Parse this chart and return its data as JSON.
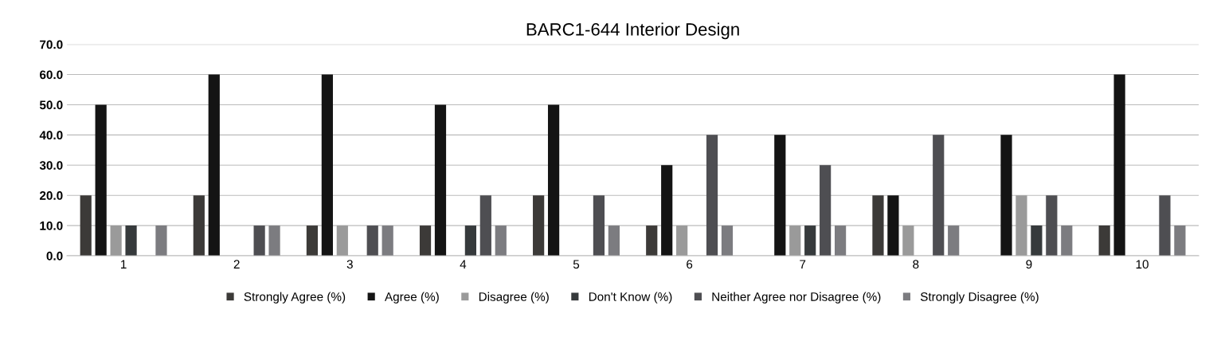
{
  "chart_data": {
    "type": "bar",
    "title": "BARC1-644 Interior Design",
    "categories": [
      "1",
      "2",
      "3",
      "4",
      "5",
      "6",
      "7",
      "8",
      "9",
      "10"
    ],
    "series": [
      {
        "name": "Strongly Agree (%)",
        "color": "#3c3a38",
        "values": [
          20,
          20,
          10,
          10,
          20,
          10,
          0,
          20,
          0,
          10
        ]
      },
      {
        "name": "Agree (%)",
        "color": "#141414",
        "values": [
          50,
          60,
          60,
          50,
          50,
          30,
          40,
          20,
          40,
          60
        ]
      },
      {
        "name": "Disagree (%)",
        "color": "#9a9a9a",
        "values": [
          10,
          0,
          10,
          0,
          0,
          10,
          10,
          10,
          20,
          0
        ]
      },
      {
        "name": "Don't Know (%)",
        "color": "#363a3c",
        "values": [
          10,
          0,
          0,
          10,
          0,
          0,
          10,
          0,
          10,
          0
        ]
      },
      {
        "name": "Neither Agree nor Disagree (%)",
        "color": "#4e4e52",
        "values": [
          0,
          10,
          10,
          20,
          20,
          40,
          30,
          40,
          20,
          20
        ]
      },
      {
        "name": "Strongly Disagree (%)",
        "color": "#7c7c80",
        "values": [
          10,
          10,
          10,
          10,
          10,
          10,
          10,
          10,
          10,
          10
        ]
      }
    ],
    "ylim": [
      0,
      70
    ],
    "yticks": [
      {
        "value": 0,
        "label": "0.0"
      },
      {
        "value": 10,
        "label": "10.0"
      },
      {
        "value": 20,
        "label": "20.0"
      },
      {
        "value": 30,
        "label": "30.0"
      },
      {
        "value": 40,
        "label": "40.0"
      },
      {
        "value": 50,
        "label": "50.0"
      },
      {
        "value": 60,
        "label": "60.0"
      },
      {
        "value": 70,
        "label": "70.0"
      }
    ],
    "grid": "y",
    "legend": "bottom"
  }
}
